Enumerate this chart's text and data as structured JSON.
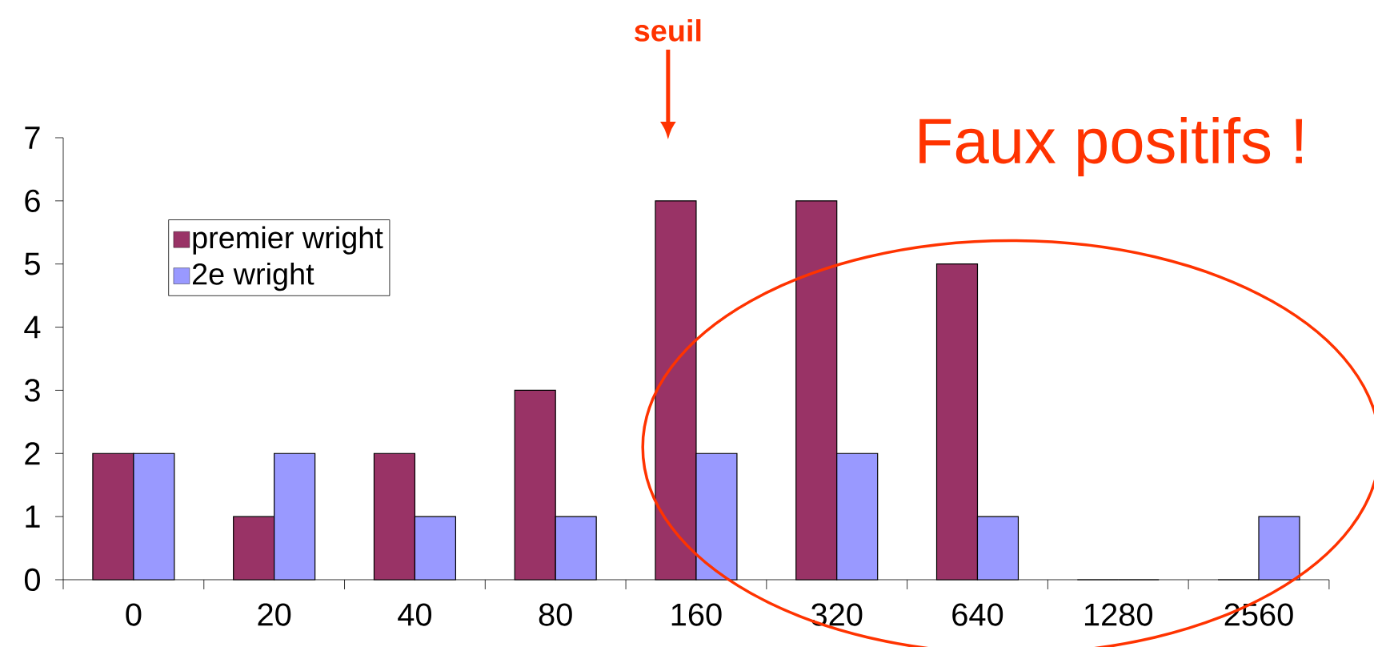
{
  "chart_data": {
    "type": "bar",
    "categories": [
      "0",
      "20",
      "40",
      "80",
      "160",
      "320",
      "640",
      "1280",
      "2560"
    ],
    "series": [
      {
        "name": "premier wright",
        "color": "#993366",
        "values": [
          2,
          1,
          2,
          3,
          6,
          6,
          5,
          0,
          0
        ]
      },
      {
        "name": "2e wright",
        "color": "#9999ff",
        "values": [
          2,
          2,
          1,
          1,
          2,
          2,
          1,
          0,
          1
        ]
      }
    ],
    "ylim": [
      0,
      7
    ],
    "yticks": [
      0,
      1,
      2,
      3,
      4,
      5,
      6,
      7
    ],
    "legend": "top left",
    "grid": false,
    "annotations": [
      "seuil",
      "Faux positifs !"
    ]
  }
}
